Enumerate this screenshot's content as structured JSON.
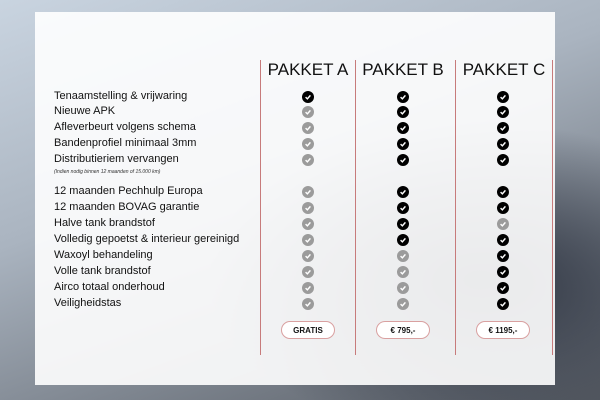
{
  "packages": [
    {
      "name": "PAKKET A",
      "price": "GRATIS"
    },
    {
      "name": "PAKKET B",
      "price": "€ 795,-"
    },
    {
      "name": "PAKKET C",
      "price": "€ 1195,-"
    }
  ],
  "note": "(Indien nodig binnen 12 maanden of 15.000 km)",
  "rows": [
    {
      "label": "Tenaamstelling & vrijwaring",
      "checks": [
        true,
        true,
        true
      ]
    },
    {
      "label": "Nieuwe APK",
      "checks": [
        false,
        true,
        true
      ]
    },
    {
      "label": "Afleverbeurt volgens schema",
      "checks": [
        false,
        true,
        true
      ]
    },
    {
      "label": "Bandenprofiel minimaal 3mm",
      "checks": [
        false,
        true,
        true
      ]
    },
    {
      "label": "Distributieriem vervangen",
      "checks": [
        false,
        true,
        true
      ]
    },
    {
      "label": "12 maanden Pechhulp Europa",
      "checks": [
        false,
        true,
        true
      ]
    },
    {
      "label": "12 maanden BOVAG garantie",
      "checks": [
        false,
        true,
        true
      ]
    },
    {
      "label": "Halve tank brandstof",
      "checks": [
        false,
        true,
        false
      ]
    },
    {
      "label": "Volledig gepoetst & interieur gereinigd",
      "checks": [
        false,
        true,
        true
      ]
    },
    {
      "label": "Waxoyl behandeling",
      "checks": [
        false,
        false,
        true
      ]
    },
    {
      "label": "Volle tank brandstof",
      "checks": [
        false,
        false,
        true
      ]
    },
    {
      "label": "Airco totaal onderhoud",
      "checks": [
        false,
        false,
        true
      ]
    },
    {
      "label": "Veiligheidstas",
      "checks": [
        false,
        false,
        true
      ]
    }
  ],
  "colors": {
    "included": "#000000",
    "not_included": "#9b9b9b",
    "divider": "#c77b7b"
  }
}
